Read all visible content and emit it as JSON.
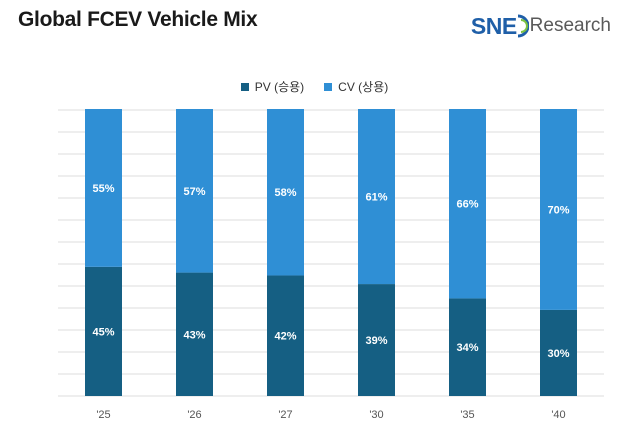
{
  "header": {
    "title": "Global FCEV Vehicle Mix",
    "logo_primary": "SNE",
    "logo_secondary": "Research"
  },
  "colors": {
    "pv": "#155f83",
    "cv": "#2f8fd5",
    "grid": "#dcdcdc",
    "logo": "#1f5fa8"
  },
  "chart_data": {
    "type": "bar",
    "stacked": true,
    "normalized_percent": true,
    "title": "Global FCEV Vehicle Mix",
    "categories": [
      "'25",
      "'26",
      "'27",
      "'30",
      "'35",
      "'40"
    ],
    "series": [
      {
        "name": "PV (승용)",
        "values": [
          45,
          43,
          42,
          39,
          34,
          30
        ],
        "labels": [
          "45%",
          "43%",
          "42%",
          "39%",
          "34%",
          "30%"
        ]
      },
      {
        "name": "CV (상용)",
        "values": [
          55,
          57,
          58,
          61,
          66,
          70
        ],
        "labels": [
          "55%",
          "57%",
          "58%",
          "61%",
          "66%",
          "70%"
        ]
      }
    ],
    "ylim": [
      0,
      100
    ],
    "grid": true,
    "legend": "top-center",
    "xlabel": "",
    "ylabel": ""
  }
}
